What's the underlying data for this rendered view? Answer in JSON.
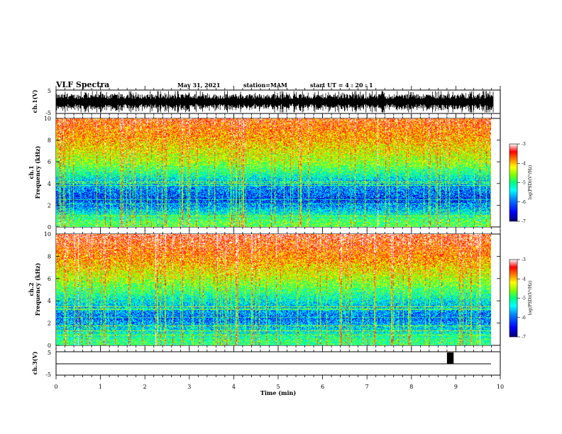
{
  "header": {
    "title": "VLF Spectra",
    "date": "May 31, 2021",
    "station": "station=MAM",
    "start": "start  UT =  4 : 20 : 1"
  },
  "colors": {
    "spectrum_scale": [
      "#00006e",
      "#0000ff",
      "#0080ff",
      "#00ffff",
      "#00ff80",
      "#80ff00",
      "#ffff00",
      "#ff8000",
      "#ff0000",
      "#ffffff"
    ],
    "trace": "#000000"
  },
  "chart_data": [
    {
      "type": "line",
      "panel": "ch1-waveform",
      "ylabel": "ch.1(V)",
      "ylim": [
        -5,
        5
      ],
      "yticks": [
        "5",
        "-5"
      ],
      "xlim": [
        0,
        10
      ],
      "description_values": {
        "baseline_V": 0,
        "amplitude_V": 4.5
      }
    },
    {
      "type": "heatmap",
      "panel": "ch1-spectrogram",
      "ylabel": "ch.1 Frequency (kHz)",
      "ylim": [
        0,
        10
      ],
      "yticks": [
        "0",
        "2",
        "4",
        "6",
        "8",
        "10"
      ],
      "xlim": [
        0,
        9.85
      ],
      "colorbar": {
        "label": "log(PSD)(V²/Hz)",
        "range": [
          -7,
          -3
        ],
        "ticks": [
          "-3",
          "-4",
          "-5",
          "-6",
          "-7"
        ]
      },
      "band_profile_kHz": [
        {
          "freq": 0.5,
          "level": -5.0
        },
        {
          "freq": 2.5,
          "level": -6.4
        },
        {
          "freq": 4.0,
          "level": -5.9
        },
        {
          "freq": 6.0,
          "level": -4.7
        },
        {
          "freq": 8.0,
          "level": -4.1
        },
        {
          "freq": 10.0,
          "level": -3.6
        }
      ]
    },
    {
      "type": "heatmap",
      "panel": "ch2-spectrogram",
      "ylabel": "ch.2 Frequency (kHz)",
      "ylim": [
        0,
        10
      ],
      "yticks": [
        "0",
        "2",
        "4",
        "6",
        "8",
        "10"
      ],
      "xlim": [
        0,
        9.85
      ],
      "colorbar": {
        "label": "log(PSD)(V²/Hz)",
        "range": [
          -7,
          -3
        ],
        "ticks": [
          "-3",
          "-4",
          "-5",
          "-6",
          "-7"
        ]
      },
      "band_profile_kHz": [
        {
          "freq": 0.5,
          "level": -5.2
        },
        {
          "freq": 2.5,
          "level": -6.2
        },
        {
          "freq": 4.0,
          "level": -5.6
        },
        {
          "freq": 6.0,
          "level": -4.6
        },
        {
          "freq": 8.0,
          "level": -3.9
        },
        {
          "freq": 10.0,
          "level": -3.4
        }
      ]
    },
    {
      "type": "line",
      "panel": "ch3-waveform",
      "ylabel": "ch.3(V)",
      "ylim": [
        -5,
        5
      ],
      "yticks": [
        "5",
        "-5"
      ],
      "xlim": [
        0,
        10
      ],
      "baseline_V": 0,
      "pulse": {
        "x_start_min": 8.8,
        "x_end_min": 8.95,
        "top_V": 5
      }
    }
  ],
  "xaxis": {
    "label": "Time  (min)",
    "ticks": [
      "0",
      "1",
      "2",
      "3",
      "4",
      "5",
      "6",
      "7",
      "8",
      "9",
      "10"
    ]
  }
}
